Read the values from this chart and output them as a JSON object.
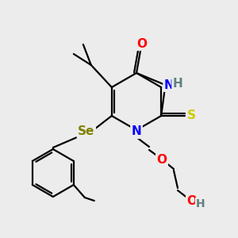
{
  "background_color": "#ececec",
  "atom_colors": {
    "O": "#ff0000",
    "N": "#0000ff",
    "S": "#cccc00",
    "Se": "#808000",
    "H": "#608080",
    "C": "#000000"
  },
  "lw": 1.6,
  "fs": 11
}
